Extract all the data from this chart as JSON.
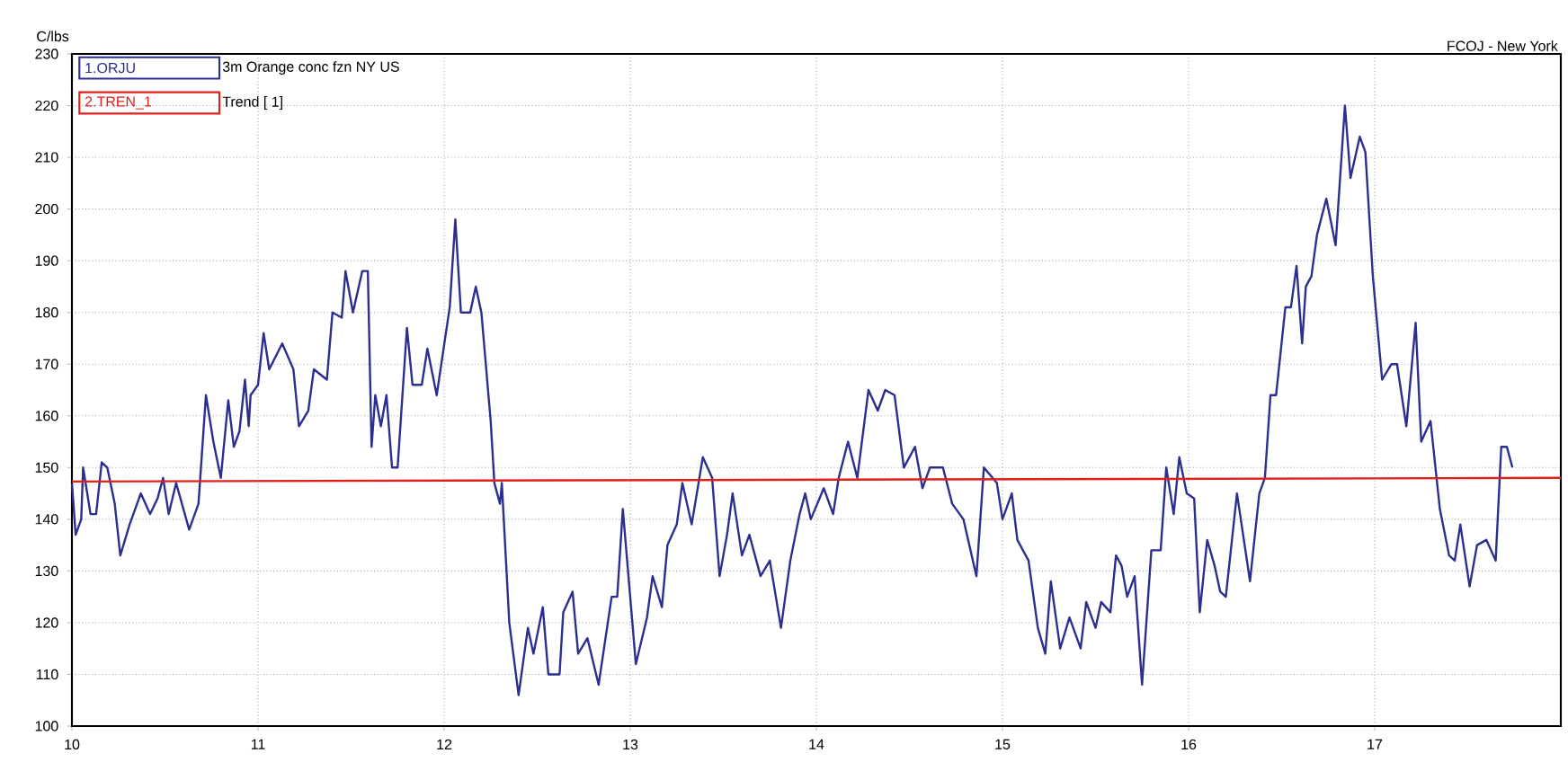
{
  "chart_data": {
    "type": "line",
    "subtitle": "FCOJ - New York",
    "ylabel": "C/lbs",
    "annotations": [
      "3m Orange conc fzn NY US",
      "Trend [ 1]"
    ],
    "xlim": [
      10,
      18
    ],
    "xticks": [
      10,
      11,
      12,
      13,
      14,
      15,
      16,
      17
    ],
    "ylim": [
      100,
      230
    ],
    "yticks": [
      100,
      110,
      120,
      130,
      140,
      150,
      160,
      170,
      180,
      190,
      200,
      210,
      220,
      230
    ],
    "grid": true,
    "legend": "top left",
    "series": [
      {
        "name": "1.ORJU",
        "color": "#2b2f8f",
        "x": [
          10.0,
          10.02,
          10.05,
          10.06,
          10.1,
          10.13,
          10.16,
          10.19,
          10.23,
          10.26,
          10.31,
          10.37,
          10.42,
          10.46,
          10.49,
          10.52,
          10.56,
          10.63,
          10.68,
          10.72,
          10.76,
          10.8,
          10.84,
          10.87,
          10.9,
          10.93,
          10.95,
          10.96,
          11.0,
          11.03,
          11.06,
          11.13,
          11.19,
          11.22,
          11.27,
          11.3,
          11.37,
          11.4,
          11.45,
          11.47,
          11.51,
          11.56,
          11.59,
          11.61,
          11.63,
          11.66,
          11.69,
          11.72,
          11.75,
          11.8,
          11.83,
          11.88,
          11.91,
          11.96,
          12.03,
          12.06,
          12.09,
          12.14,
          12.17,
          12.2,
          12.25,
          12.27,
          12.3,
          12.31,
          12.35,
          12.4,
          12.45,
          12.48,
          12.53,
          12.56,
          12.62,
          12.64,
          12.69,
          12.72,
          12.77,
          12.83,
          12.9,
          12.93,
          12.96,
          13.03,
          13.09,
          13.12,
          13.17,
          13.2,
          13.25,
          13.28,
          13.33,
          13.39,
          13.44,
          13.48,
          13.52,
          13.55,
          13.6,
          13.64,
          13.7,
          13.75,
          13.81,
          13.86,
          13.91,
          13.94,
          13.97,
          14.04,
          14.09,
          14.12,
          14.17,
          14.22,
          14.28,
          14.33,
          14.37,
          14.42,
          14.47,
          14.53,
          14.57,
          14.61,
          14.68,
          14.73,
          14.79,
          14.86,
          14.9,
          14.97,
          15.0,
          15.05,
          15.08,
          15.14,
          15.19,
          15.23,
          15.26,
          15.31,
          15.36,
          15.42,
          15.45,
          15.5,
          15.53,
          15.58,
          15.61,
          15.64,
          15.67,
          15.71,
          15.75,
          15.8,
          15.85,
          15.88,
          15.92,
          15.95,
          15.99,
          16.03,
          16.06,
          16.1,
          16.14,
          16.17,
          16.2,
          16.26,
          16.33,
          16.38,
          16.41,
          16.44,
          16.47,
          16.52,
          16.55,
          16.58,
          16.61,
          16.63,
          16.66,
          16.69,
          16.74,
          16.79,
          16.84,
          16.87,
          16.92,
          16.95,
          16.99,
          17.04,
          17.09,
          17.12,
          17.17,
          17.22,
          17.25,
          17.3,
          17.35,
          17.4,
          17.43,
          17.46,
          17.51,
          17.55,
          17.6,
          17.65,
          17.68,
          17.71,
          17.74
        ],
        "values": [
          147,
          137,
          140,
          150,
          141,
          141,
          151,
          150,
          143,
          133,
          139,
          145,
          141,
          144,
          148,
          141,
          147,
          138,
          143,
          164,
          155,
          148,
          163,
          154,
          157,
          167,
          158,
          164,
          166,
          176,
          169,
          174,
          169,
          158,
          161,
          169,
          167,
          180,
          179,
          188,
          180,
          188,
          188,
          154,
          164,
          158,
          164,
          150,
          150,
          177,
          166,
          166,
          173,
          164,
          181,
          198,
          180,
          180,
          185,
          180,
          159,
          147,
          143,
          147,
          120,
          106,
          119,
          114,
          123,
          110,
          110,
          122,
          126,
          114,
          117,
          108,
          125,
          125,
          142,
          112,
          121,
          129,
          123,
          135,
          139,
          147,
          139,
          152,
          148,
          129,
          137,
          145,
          133,
          137,
          129,
          132,
          119,
          132,
          141,
          145,
          140,
          146,
          141,
          148,
          155,
          148,
          165,
          161,
          165,
          164,
          150,
          154,
          146,
          150,
          150,
          143,
          140,
          129,
          150,
          147,
          140,
          145,
          136,
          132,
          119,
          114,
          128,
          115,
          121,
          115,
          124,
          119,
          124,
          122,
          133,
          131,
          125,
          129,
          108,
          134,
          134,
          150,
          141,
          152,
          145,
          144,
          122,
          136,
          131,
          126,
          125,
          145,
          128,
          145,
          148,
          164,
          164,
          181,
          181,
          189,
          174,
          185,
          187,
          195,
          202,
          193,
          220,
          206,
          214,
          211,
          187,
          167,
          170,
          170,
          158,
          178,
          155,
          159,
          142,
          133,
          132,
          139,
          127,
          135,
          136,
          132,
          154,
          154,
          150
        ]
      },
      {
        "name": "2.TREN_1",
        "color": "#e0201b",
        "x": [
          10,
          18
        ],
        "values": [
          147.3,
          148
        ]
      }
    ]
  }
}
